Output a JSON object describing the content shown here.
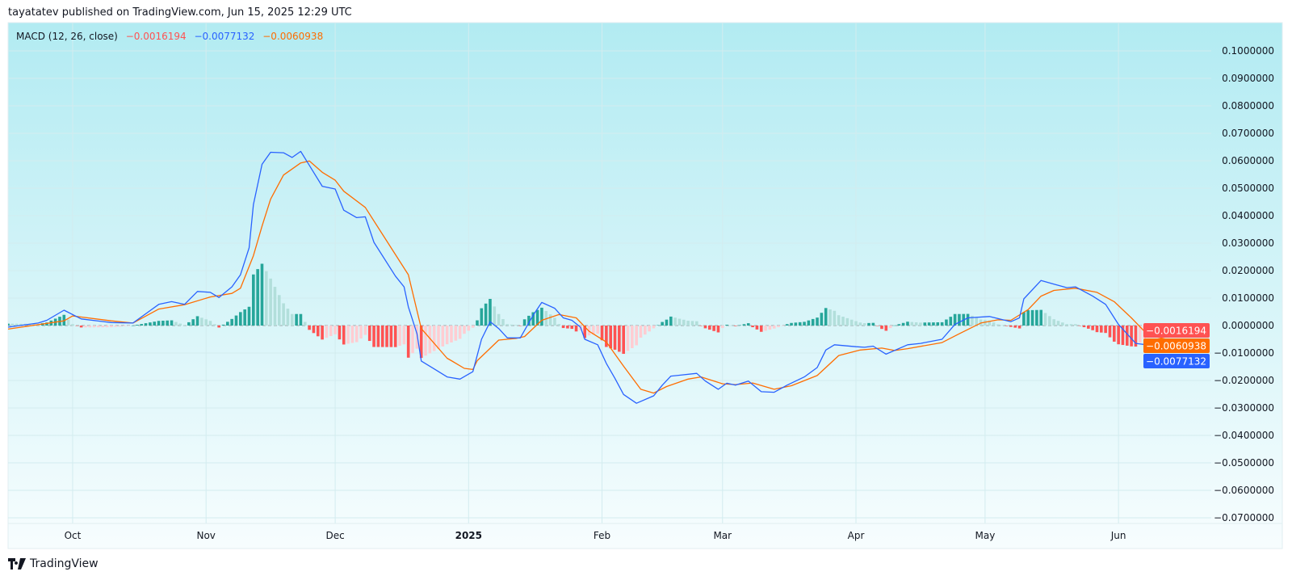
{
  "header": {
    "text": "tayatatev published on TradingView.com, Jun 15, 2025 12:29 UTC"
  },
  "legend": {
    "name": "MACD (12, 26, close)",
    "histogram_value": "−0.0016194",
    "macd_value": "−0.0077132",
    "signal_value": "−0.0060938"
  },
  "price_labels": {
    "histogram": "−0.0016194",
    "signal": "−0.0060938",
    "macd": "−0.0077132"
  },
  "footer": {
    "brand": "TradingView"
  },
  "colors": {
    "macd": "#2962ff",
    "signal": "#ff6d00",
    "hist_pos_grow": "#26a69a",
    "hist_pos_fall": "#b2dfdb",
    "hist_neg_grow": "#ff5252",
    "hist_neg_fall": "#ffcdd2",
    "background_top": "#b2ebf2",
    "background_bottom": "#f7fdfe"
  },
  "chart_data": {
    "type": "line",
    "title": "MACD (12, 26, close)",
    "x_type": "date",
    "xlim": [
      "2024-09-16",
      "2025-06-15"
    ],
    "ylim": [
      -0.07,
      0.1
    ],
    "grid": true,
    "y_ticks": [
      "0.1000000",
      "0.0900000",
      "0.0800000",
      "0.0700000",
      "0.0600000",
      "0.0500000",
      "0.0400000",
      "0.0300000",
      "0.0200000",
      "0.0100000",
      "0.0000000",
      "−0.0100000",
      "−0.0200000",
      "−0.0300000",
      "−0.0400000",
      "−0.0500000",
      "−0.0600000",
      "−0.0700000"
    ],
    "y_tick_values": [
      0.1,
      0.09,
      0.08,
      0.07,
      0.06,
      0.05,
      0.04,
      0.03,
      0.02,
      0.01,
      0,
      -0.01,
      -0.02,
      -0.03,
      -0.04,
      -0.05,
      -0.06,
      -0.07
    ],
    "x_ticks": [
      {
        "label": "Oct",
        "date": "2024-10-01"
      },
      {
        "label": "Nov",
        "date": "2024-11-01"
      },
      {
        "label": "Dec",
        "date": "2024-12-01"
      },
      {
        "label": "2025",
        "date": "2025-01-01",
        "bold": true
      },
      {
        "label": "Feb",
        "date": "2025-02-01"
      },
      {
        "label": "Mar",
        "date": "2025-03-01"
      },
      {
        "label": "Apr",
        "date": "2025-04-01"
      },
      {
        "label": "May",
        "date": "2025-05-01"
      },
      {
        "label": "Jun",
        "date": "2025-06-01"
      }
    ],
    "histogram_rule": "MACD - Signal",
    "series": [
      {
        "key": "macd",
        "points": [
          [
            "2024-09-16",
            -0.0006
          ],
          [
            "2024-09-23",
            0.0009
          ],
          [
            "2024-09-25",
            0.0019
          ],
          [
            "2024-09-29",
            0.0056
          ],
          [
            "2024-10-03",
            0.0024
          ],
          [
            "2024-10-10",
            0.0011
          ],
          [
            "2024-10-15",
            0.0009
          ],
          [
            "2024-10-21",
            0.0077
          ],
          [
            "2024-10-24",
            0.0087
          ],
          [
            "2024-10-27",
            0.0077
          ],
          [
            "2024-10-30",
            0.0124
          ],
          [
            "2024-11-02",
            0.0121
          ],
          [
            "2024-11-04",
            0.0102
          ],
          [
            "2024-11-07",
            0.0141
          ],
          [
            "2024-11-09",
            0.0185
          ],
          [
            "2024-11-11",
            0.0283
          ],
          [
            "2024-11-12",
            0.044
          ],
          [
            "2024-11-14",
            0.0587
          ],
          [
            "2024-11-16",
            0.0631
          ],
          [
            "2024-11-19",
            0.0629
          ],
          [
            "2024-11-21",
            0.0612
          ],
          [
            "2024-11-23",
            0.0634
          ],
          [
            "2024-11-26",
            0.0558
          ],
          [
            "2024-11-28",
            0.0507
          ],
          [
            "2024-12-01",
            0.0497
          ],
          [
            "2024-12-03",
            0.042
          ],
          [
            "2024-12-06",
            0.0393
          ],
          [
            "2024-12-08",
            0.0396
          ],
          [
            "2024-12-10",
            0.0303
          ],
          [
            "2024-12-15",
            0.018
          ],
          [
            "2024-12-17",
            0.0141
          ],
          [
            "2024-12-18",
            0.0068
          ],
          [
            "2024-12-20",
            -0.003
          ],
          [
            "2024-12-21",
            -0.0129
          ],
          [
            "2024-12-24",
            -0.0158
          ],
          [
            "2024-12-27",
            -0.0187
          ],
          [
            "2024-12-30",
            -0.0195
          ],
          [
            "2025-01-02",
            -0.0168
          ],
          [
            "2025-01-04",
            -0.005
          ],
          [
            "2025-01-06",
            0.0014
          ],
          [
            "2025-01-08",
            -0.0011
          ],
          [
            "2025-01-10",
            -0.0045
          ],
          [
            "2025-01-13",
            -0.0045
          ],
          [
            "2025-01-16",
            0.0038
          ],
          [
            "2025-01-18",
            0.0084
          ],
          [
            "2025-01-21",
            0.0063
          ],
          [
            "2025-01-23",
            0.0028
          ],
          [
            "2025-01-25",
            0.0019
          ],
          [
            "2025-01-27",
            -0.0006
          ],
          [
            "2025-01-28",
            -0.005
          ],
          [
            "2025-01-31",
            -0.007
          ],
          [
            "2025-02-02",
            -0.0138
          ],
          [
            "2025-02-04",
            -0.0192
          ],
          [
            "2025-02-06",
            -0.0251
          ],
          [
            "2025-02-09",
            -0.0283
          ],
          [
            "2025-02-13",
            -0.0256
          ],
          [
            "2025-02-15",
            -0.0217
          ],
          [
            "2025-02-17",
            -0.0184
          ],
          [
            "2025-02-19",
            -0.0181
          ],
          [
            "2025-02-23",
            -0.0174
          ],
          [
            "2025-02-25",
            -0.0202
          ],
          [
            "2025-02-28",
            -0.0232
          ],
          [
            "2025-03-02",
            -0.021
          ],
          [
            "2025-03-04",
            -0.0217
          ],
          [
            "2025-03-07",
            -0.0202
          ],
          [
            "2025-03-10",
            -0.0241
          ],
          [
            "2025-03-13",
            -0.0243
          ],
          [
            "2025-03-16",
            -0.0217
          ],
          [
            "2025-03-20",
            -0.0187
          ],
          [
            "2025-03-23",
            -0.0153
          ],
          [
            "2025-03-25",
            -0.0089
          ],
          [
            "2025-03-27",
            -0.007
          ],
          [
            "2025-04-01",
            -0.0077
          ],
          [
            "2025-04-03",
            -0.0079
          ],
          [
            "2025-04-05",
            -0.0075
          ],
          [
            "2025-04-08",
            -0.0104
          ],
          [
            "2025-04-13",
            -0.007
          ],
          [
            "2025-04-16",
            -0.0065
          ],
          [
            "2025-04-21",
            -0.005
          ],
          [
            "2025-04-24",
            0.0004
          ],
          [
            "2025-04-27",
            0.0028
          ],
          [
            "2025-05-02",
            0.0033
          ],
          [
            "2025-05-07",
            0.0014
          ],
          [
            "2025-05-09",
            0.0028
          ],
          [
            "2025-05-10",
            0.0097
          ],
          [
            "2025-05-14",
            0.0164
          ],
          [
            "2025-05-17",
            0.0151
          ],
          [
            "2025-05-20",
            0.0138
          ],
          [
            "2025-05-22",
            0.0141
          ],
          [
            "2025-05-26",
            0.0107
          ],
          [
            "2025-05-29",
            0.0077
          ],
          [
            "2025-06-01",
            0.0004
          ],
          [
            "2025-06-05",
            -0.0065
          ],
          [
            "2025-06-09",
            -0.0073
          ],
          [
            "2025-06-11",
            -0.0055
          ],
          [
            "2025-06-15",
            -0.0077132
          ]
        ]
      },
      {
        "key": "signal",
        "points": [
          [
            "2024-09-16",
            -0.0013
          ],
          [
            "2024-09-29",
            0.0017
          ],
          [
            "2024-10-01",
            0.0035
          ],
          [
            "2024-10-10",
            0.0017
          ],
          [
            "2024-10-15",
            0.0009
          ],
          [
            "2024-10-21",
            0.006
          ],
          [
            "2024-10-27",
            0.0076
          ],
          [
            "2024-11-02",
            0.0104
          ],
          [
            "2024-11-07",
            0.0117
          ],
          [
            "2024-11-09",
            0.0136
          ],
          [
            "2024-11-12",
            0.0254
          ],
          [
            "2024-11-14",
            0.0362
          ],
          [
            "2024-11-16",
            0.046
          ],
          [
            "2024-11-19",
            0.0548
          ],
          [
            "2024-11-23",
            0.0592
          ],
          [
            "2024-11-25",
            0.0599
          ],
          [
            "2024-11-28",
            0.0558
          ],
          [
            "2024-12-01",
            0.0529
          ],
          [
            "2024-12-03",
            0.0489
          ],
          [
            "2024-12-08",
            0.043
          ],
          [
            "2024-12-12",
            0.0332
          ],
          [
            "2024-12-18",
            0.0185
          ],
          [
            "2024-12-21",
            -0.0011
          ],
          [
            "2024-12-27",
            -0.0119
          ],
          [
            "2024-12-28",
            -0.0128
          ],
          [
            "2024-12-31",
            -0.0156
          ],
          [
            "2025-01-02",
            -0.016
          ],
          [
            "2025-01-03",
            -0.0128
          ],
          [
            "2025-01-08",
            -0.0053
          ],
          [
            "2025-01-12",
            -0.0047
          ],
          [
            "2025-01-14",
            -0.004
          ],
          [
            "2025-01-18",
            0.0019
          ],
          [
            "2025-01-22",
            0.004
          ],
          [
            "2025-01-26",
            0.0028
          ],
          [
            "2025-01-29",
            -0.0021
          ],
          [
            "2025-02-02",
            -0.006
          ],
          [
            "2025-02-06",
            -0.0148
          ],
          [
            "2025-02-10",
            -0.0232
          ],
          [
            "2025-02-13",
            -0.0246
          ],
          [
            "2025-02-16",
            -0.0222
          ],
          [
            "2025-02-21",
            -0.0195
          ],
          [
            "2025-02-24",
            -0.0187
          ],
          [
            "2025-03-01",
            -0.0212
          ],
          [
            "2025-03-04",
            -0.0215
          ],
          [
            "2025-03-08",
            -0.0209
          ],
          [
            "2025-03-13",
            -0.0232
          ],
          [
            "2025-03-17",
            -0.0219
          ],
          [
            "2025-03-23",
            -0.0182
          ],
          [
            "2025-03-28",
            -0.0109
          ],
          [
            "2025-04-02",
            -0.0089
          ],
          [
            "2025-04-07",
            -0.0082
          ],
          [
            "2025-04-10",
            -0.0091
          ],
          [
            "2025-04-13",
            -0.0084
          ],
          [
            "2025-04-21",
            -0.0062
          ],
          [
            "2025-04-25",
            -0.003
          ],
          [
            "2025-04-30",
            0.0009
          ],
          [
            "2025-05-04",
            0.0021
          ],
          [
            "2025-05-07",
            0.0019
          ],
          [
            "2025-05-11",
            0.0058
          ],
          [
            "2025-05-14",
            0.0107
          ],
          [
            "2025-05-17",
            0.0128
          ],
          [
            "2025-05-22",
            0.0136
          ],
          [
            "2025-05-27",
            0.0121
          ],
          [
            "2025-05-31",
            0.0087
          ],
          [
            "2025-06-04",
            0.0028
          ],
          [
            "2025-06-07",
            -0.0021
          ],
          [
            "2025-06-10",
            -0.0042
          ],
          [
            "2025-06-15",
            -0.0060938
          ]
        ]
      }
    ]
  }
}
